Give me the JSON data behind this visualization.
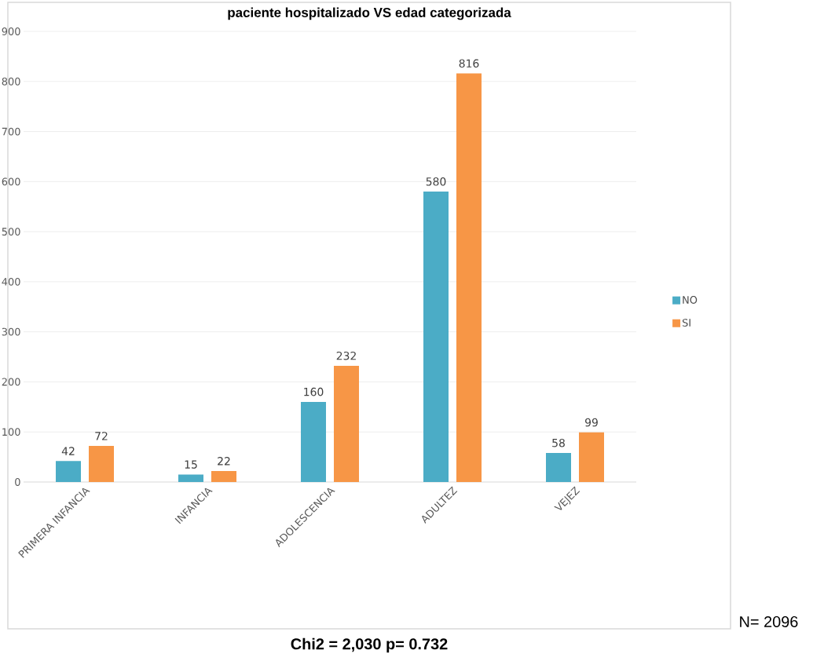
{
  "chart_data": {
    "type": "bar",
    "title": "paciente hospitalizado VS edad categorizada",
    "categories": [
      "PRIMERA INFANCIA",
      "INFANCIA",
      "ADOLESCENCIA",
      "ADULTEZ",
      "VEJEZ"
    ],
    "series": [
      {
        "name": "NO",
        "color": "#4bacc6",
        "values": [
          42,
          15,
          160,
          580,
          58
        ]
      },
      {
        "name": "SI",
        "color": "#f79646",
        "values": [
          72,
          22,
          232,
          816,
          99
        ]
      }
    ],
    "ylim": [
      0,
      900
    ],
    "yticks": [
      0,
      100,
      200,
      300,
      400,
      500,
      600,
      700,
      800,
      900
    ],
    "grid": "y",
    "legend": "right",
    "data_labels": true,
    "annotations": [
      "N= 2096",
      "Chi2 = 2,030   p= 0.732"
    ]
  }
}
